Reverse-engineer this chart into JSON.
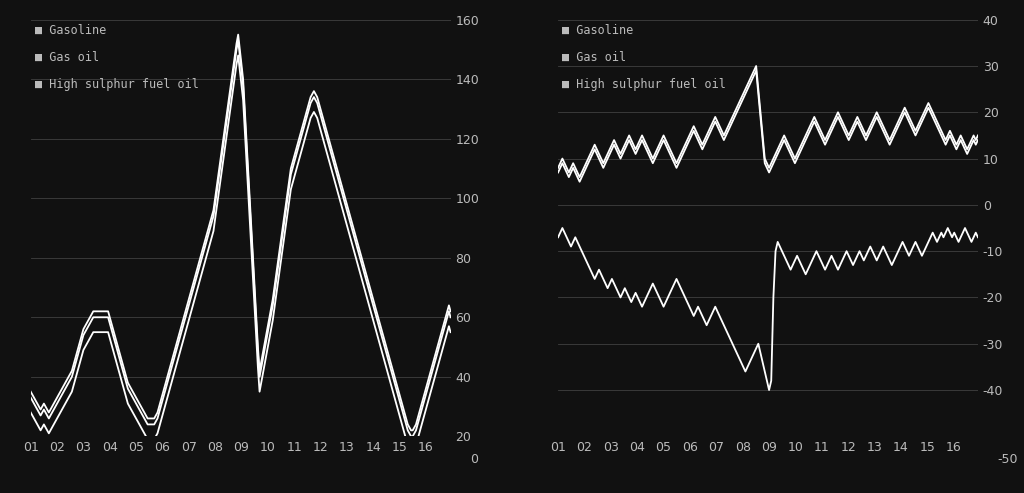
{
  "background_color": "#111111",
  "text_color": "#bbbbbb",
  "line_color": "#ffffff",
  "grid_color": "#404040",
  "legend_labels": [
    "Gasoline",
    "Gas oil",
    "High sulphur fuel oil"
  ],
  "left_ylim": [
    20,
    160
  ],
  "left_yticks": [
    20,
    40,
    60,
    80,
    100,
    120,
    140,
    160
  ],
  "right_ylim": [
    -50,
    40
  ],
  "right_yticks": [
    -40,
    -30,
    -20,
    -10,
    0,
    10,
    20,
    30,
    40
  ],
  "xtick_labels": [
    "01",
    "02",
    "03",
    "04",
    "05",
    "06",
    "07",
    "08",
    "09",
    "10",
    "11",
    "12",
    "13",
    "14",
    "15",
    "16"
  ],
  "left_extra_xtick": "0",
  "right_extra_xtick": "-50",
  "left_chart": {
    "gasoline": [
      35,
      34,
      33,
      32,
      31,
      30,
      29,
      30,
      31,
      30,
      29,
      28,
      29,
      30,
      31,
      32,
      33,
      34,
      35,
      36,
      37,
      38,
      39,
      40,
      41,
      42,
      44,
      46,
      48,
      50,
      52,
      54,
      56,
      57,
      58,
      59,
      60,
      61,
      62,
      62,
      62,
      62,
      62,
      62,
      62,
      62,
      62,
      62,
      60,
      58,
      56,
      54,
      52,
      50,
      48,
      46,
      44,
      42,
      40,
      38,
      37,
      36,
      35,
      34,
      33,
      32,
      31,
      30,
      29,
      28,
      27,
      26,
      26,
      26,
      26,
      26,
      27,
      28,
      30,
      32,
      34,
      36,
      38,
      40,
      42,
      44,
      46,
      48,
      50,
      52,
      54,
      56,
      58,
      60,
      62,
      64,
      66,
      68,
      70,
      72,
      74,
      76,
      78,
      80,
      82,
      84,
      86,
      88,
      90,
      92,
      94,
      96,
      100,
      104,
      108,
      112,
      116,
      120,
      124,
      128,
      132,
      136,
      140,
      144,
      148,
      152,
      155,
      150,
      145,
      140,
      130,
      120,
      110,
      100,
      90,
      80,
      70,
      60,
      50,
      42,
      45,
      48,
      51,
      54,
      57,
      60,
      63,
      66,
      70,
      74,
      78,
      82,
      86,
      90,
      94,
      98,
      102,
      106,
      110,
      112,
      114,
      116,
      118,
      120,
      122,
      124,
      126,
      128,
      130,
      132,
      134,
      135,
      136,
      135,
      134,
      132,
      130,
      128,
      126,
      124,
      122,
      120,
      118,
      116,
      114,
      112,
      110,
      108,
      106,
      104,
      102,
      100,
      98,
      96,
      94,
      92,
      90,
      88,
      86,
      84,
      82,
      80,
      78,
      76,
      74,
      72,
      70,
      68,
      66,
      64,
      62,
      60,
      58,
      56,
      54,
      52,
      50,
      48,
      46,
      44,
      42,
      40,
      38,
      36,
      34,
      32,
      30,
      28,
      26,
      24,
      23,
      22,
      22,
      23,
      24,
      26,
      28,
      30,
      32,
      34,
      36,
      38,
      40,
      42,
      44,
      46,
      48,
      50,
      52,
      54,
      56,
      58,
      60,
      62,
      64,
      62
    ],
    "gas_oil": [
      33,
      32,
      31,
      30,
      29,
      28,
      27,
      28,
      29,
      28,
      27,
      26,
      27,
      28,
      29,
      30,
      31,
      32,
      33,
      34,
      35,
      36,
      37,
      38,
      39,
      40,
      42,
      44,
      46,
      48,
      50,
      52,
      54,
      55,
      56,
      57,
      58,
      59,
      60,
      60,
      60,
      60,
      60,
      60,
      60,
      60,
      60,
      60,
      58,
      56,
      54,
      52,
      50,
      48,
      46,
      44,
      42,
      40,
      38,
      36,
      35,
      34,
      33,
      32,
      31,
      30,
      29,
      28,
      27,
      26,
      25,
      24,
      24,
      24,
      24,
      24,
      25,
      26,
      28,
      30,
      32,
      34,
      36,
      38,
      40,
      42,
      44,
      46,
      48,
      50,
      52,
      54,
      56,
      58,
      60,
      62,
      64,
      66,
      68,
      70,
      72,
      74,
      76,
      78,
      80,
      82,
      84,
      86,
      88,
      90,
      92,
      94,
      98,
      102,
      106,
      110,
      114,
      118,
      122,
      126,
      130,
      134,
      138,
      142,
      146,
      150,
      153,
      148,
      143,
      138,
      128,
      118,
      108,
      98,
      88,
      78,
      68,
      58,
      48,
      40,
      43,
      46,
      49,
      52,
      55,
      58,
      61,
      64,
      68,
      72,
      76,
      80,
      84,
      88,
      92,
      96,
      100,
      104,
      108,
      110,
      112,
      114,
      116,
      118,
      120,
      122,
      124,
      126,
      128,
      130,
      132,
      133,
      134,
      133,
      132,
      130,
      128,
      126,
      124,
      122,
      120,
      118,
      116,
      114,
      112,
      110,
      108,
      106,
      104,
      102,
      100,
      98,
      96,
      94,
      92,
      90,
      88,
      86,
      84,
      82,
      80,
      78,
      76,
      74,
      72,
      70,
      68,
      66,
      64,
      62,
      60,
      58,
      56,
      54,
      52,
      50,
      48,
      46,
      44,
      42,
      40,
      38,
      36,
      34,
      32,
      30,
      28,
      26,
      24,
      22,
      21,
      20,
      20,
      21,
      22,
      24,
      26,
      28,
      30,
      32,
      34,
      36,
      38,
      40,
      42,
      44,
      46,
      48,
      50,
      52,
      54,
      56,
      58,
      60,
      62,
      60
    ],
    "fuel_oil": [
      28,
      27,
      26,
      25,
      24,
      23,
      22,
      23,
      24,
      23,
      22,
      21,
      22,
      23,
      24,
      25,
      26,
      27,
      28,
      29,
      30,
      31,
      32,
      33,
      34,
      35,
      37,
      39,
      41,
      43,
      45,
      47,
      49,
      50,
      51,
      52,
      53,
      54,
      55,
      55,
      55,
      55,
      55,
      55,
      55,
      55,
      55,
      55,
      53,
      51,
      49,
      47,
      45,
      43,
      41,
      39,
      37,
      35,
      33,
      31,
      30,
      29,
      28,
      27,
      26,
      25,
      24,
      23,
      22,
      21,
      20,
      19,
      19,
      19,
      19,
      19,
      20,
      21,
      23,
      25,
      27,
      29,
      31,
      33,
      35,
      37,
      39,
      41,
      43,
      45,
      47,
      49,
      51,
      53,
      55,
      57,
      59,
      61,
      63,
      65,
      67,
      69,
      71,
      73,
      75,
      77,
      79,
      81,
      83,
      85,
      87,
      89,
      93,
      97,
      101,
      105,
      109,
      113,
      117,
      121,
      125,
      129,
      133,
      137,
      141,
      145,
      148,
      143,
      138,
      133,
      123,
      113,
      103,
      93,
      83,
      73,
      63,
      53,
      43,
      35,
      38,
      41,
      44,
      47,
      50,
      53,
      56,
      59,
      63,
      67,
      71,
      75,
      79,
      83,
      87,
      91,
      95,
      99,
      103,
      105,
      107,
      109,
      111,
      113,
      115,
      117,
      119,
      121,
      123,
      125,
      127,
      128,
      129,
      128,
      127,
      125,
      123,
      121,
      119,
      117,
      115,
      113,
      111,
      109,
      107,
      105,
      103,
      101,
      99,
      97,
      95,
      93,
      91,
      89,
      87,
      85,
      83,
      81,
      79,
      77,
      75,
      73,
      71,
      69,
      67,
      65,
      63,
      61,
      59,
      57,
      55,
      53,
      51,
      49,
      47,
      45,
      43,
      41,
      39,
      37,
      35,
      33,
      31,
      29,
      27,
      25,
      23,
      21,
      19,
      17,
      16,
      15,
      15,
      16,
      17,
      19,
      21,
      23,
      25,
      27,
      29,
      31,
      33,
      35,
      37,
      39,
      41,
      43,
      45,
      47,
      49,
      51,
      53,
      55,
      57,
      55
    ]
  },
  "right_chart": {
    "gasoline": [
      8,
      9,
      10,
      9,
      8,
      7,
      8,
      9,
      8,
      7,
      6,
      7,
      8,
      9,
      10,
      11,
      12,
      13,
      12,
      11,
      10,
      9,
      10,
      11,
      12,
      13,
      14,
      13,
      12,
      11,
      12,
      13,
      14,
      15,
      14,
      13,
      12,
      13,
      14,
      15,
      14,
      13,
      12,
      11,
      10,
      11,
      12,
      13,
      14,
      15,
      14,
      13,
      12,
      11,
      10,
      9,
      10,
      11,
      12,
      13,
      14,
      15,
      16,
      17,
      16,
      15,
      14,
      13,
      14,
      15,
      16,
      17,
      18,
      19,
      18,
      17,
      16,
      15,
      16,
      17,
      18,
      19,
      20,
      21,
      22,
      23,
      24,
      25,
      26,
      27,
      28,
      29,
      30,
      25,
      20,
      15,
      10,
      9,
      8,
      9,
      10,
      11,
      12,
      13,
      14,
      15,
      14,
      13,
      12,
      11,
      10,
      11,
      12,
      13,
      14,
      15,
      16,
      17,
      18,
      19,
      18,
      17,
      16,
      15,
      14,
      15,
      16,
      17,
      18,
      19,
      20,
      19,
      18,
      17,
      16,
      15,
      16,
      17,
      18,
      19,
      18,
      17,
      16,
      15,
      16,
      17,
      18,
      19,
      20,
      19,
      18,
      17,
      16,
      15,
      14,
      15,
      16,
      17,
      18,
      19,
      20,
      21,
      20,
      19,
      18,
      17,
      16,
      17,
      18,
      19,
      20,
      21,
      22,
      21,
      20,
      19,
      18,
      17,
      16,
      15,
      14,
      15,
      16,
      15,
      14,
      13,
      14,
      15,
      14,
      13,
      12,
      13,
      14,
      15,
      14,
      15
    ],
    "gas_oil": [
      7,
      8,
      9,
      8,
      7,
      6,
      7,
      8,
      7,
      6,
      5,
      6,
      7,
      8,
      9,
      10,
      11,
      12,
      11,
      10,
      9,
      8,
      9,
      10,
      11,
      12,
      13,
      12,
      11,
      10,
      11,
      12,
      13,
      14,
      13,
      12,
      11,
      12,
      13,
      14,
      13,
      12,
      11,
      10,
      9,
      10,
      11,
      12,
      13,
      14,
      13,
      12,
      11,
      10,
      9,
      8,
      9,
      10,
      11,
      12,
      13,
      14,
      15,
      16,
      15,
      14,
      13,
      12,
      13,
      14,
      15,
      16,
      17,
      18,
      17,
      16,
      15,
      14,
      15,
      16,
      17,
      18,
      19,
      20,
      21,
      22,
      23,
      24,
      25,
      26,
      27,
      28,
      29,
      24,
      19,
      14,
      9,
      8,
      7,
      8,
      9,
      10,
      11,
      12,
      13,
      14,
      13,
      12,
      11,
      10,
      9,
      10,
      11,
      12,
      13,
      14,
      15,
      16,
      17,
      18,
      17,
      16,
      15,
      14,
      13,
      14,
      15,
      16,
      17,
      18,
      19,
      18,
      17,
      16,
      15,
      14,
      15,
      16,
      17,
      18,
      17,
      16,
      15,
      14,
      15,
      16,
      17,
      18,
      19,
      18,
      17,
      16,
      15,
      14,
      13,
      14,
      15,
      16,
      17,
      18,
      19,
      20,
      19,
      18,
      17,
      16,
      15,
      16,
      17,
      18,
      19,
      20,
      21,
      20,
      19,
      18,
      17,
      16,
      15,
      14,
      13,
      14,
      15,
      14,
      13,
      12,
      13,
      14,
      13,
      12,
      11,
      12,
      13,
      14,
      13,
      14
    ],
    "fuel_oil": [
      -7,
      -6,
      -5,
      -6,
      -7,
      -8,
      -9,
      -8,
      -7,
      -8,
      -9,
      -10,
      -11,
      -12,
      -13,
      -14,
      -15,
      -16,
      -15,
      -14,
      -15,
      -16,
      -17,
      -18,
      -17,
      -16,
      -17,
      -18,
      -19,
      -20,
      -19,
      -18,
      -19,
      -20,
      -21,
      -20,
      -19,
      -20,
      -21,
      -22,
      -21,
      -20,
      -19,
      -18,
      -17,
      -18,
      -19,
      -20,
      -21,
      -22,
      -21,
      -20,
      -19,
      -18,
      -17,
      -16,
      -17,
      -18,
      -19,
      -20,
      -21,
      -22,
      -23,
      -24,
      -23,
      -22,
      -23,
      -24,
      -25,
      -26,
      -25,
      -24,
      -23,
      -22,
      -23,
      -24,
      -25,
      -26,
      -27,
      -28,
      -29,
      -30,
      -31,
      -32,
      -33,
      -34,
      -35,
      -36,
      -35,
      -34,
      -33,
      -32,
      -31,
      -30,
      -32,
      -34,
      -36,
      -38,
      -40,
      -38,
      -20,
      -10,
      -8,
      -9,
      -10,
      -11,
      -12,
      -13,
      -14,
      -13,
      -12,
      -11,
      -12,
      -13,
      -14,
      -15,
      -14,
      -13,
      -12,
      -11,
      -10,
      -11,
      -12,
      -13,
      -14,
      -13,
      -12,
      -11,
      -12,
      -13,
      -14,
      -13,
      -12,
      -11,
      -10,
      -11,
      -12,
      -13,
      -12,
      -11,
      -10,
      -11,
      -12,
      -11,
      -10,
      -9,
      -10,
      -11,
      -12,
      -11,
      -10,
      -9,
      -10,
      -11,
      -12,
      -13,
      -12,
      -11,
      -10,
      -9,
      -8,
      -9,
      -10,
      -11,
      -10,
      -9,
      -8,
      -9,
      -10,
      -11,
      -10,
      -9,
      -8,
      -7,
      -6,
      -7,
      -8,
      -7,
      -6,
      -7,
      -6,
      -5,
      -6,
      -7,
      -6,
      -7,
      -8,
      -7,
      -6,
      -5,
      -6,
      -7,
      -8,
      -7,
      -6,
      -7
    ]
  }
}
